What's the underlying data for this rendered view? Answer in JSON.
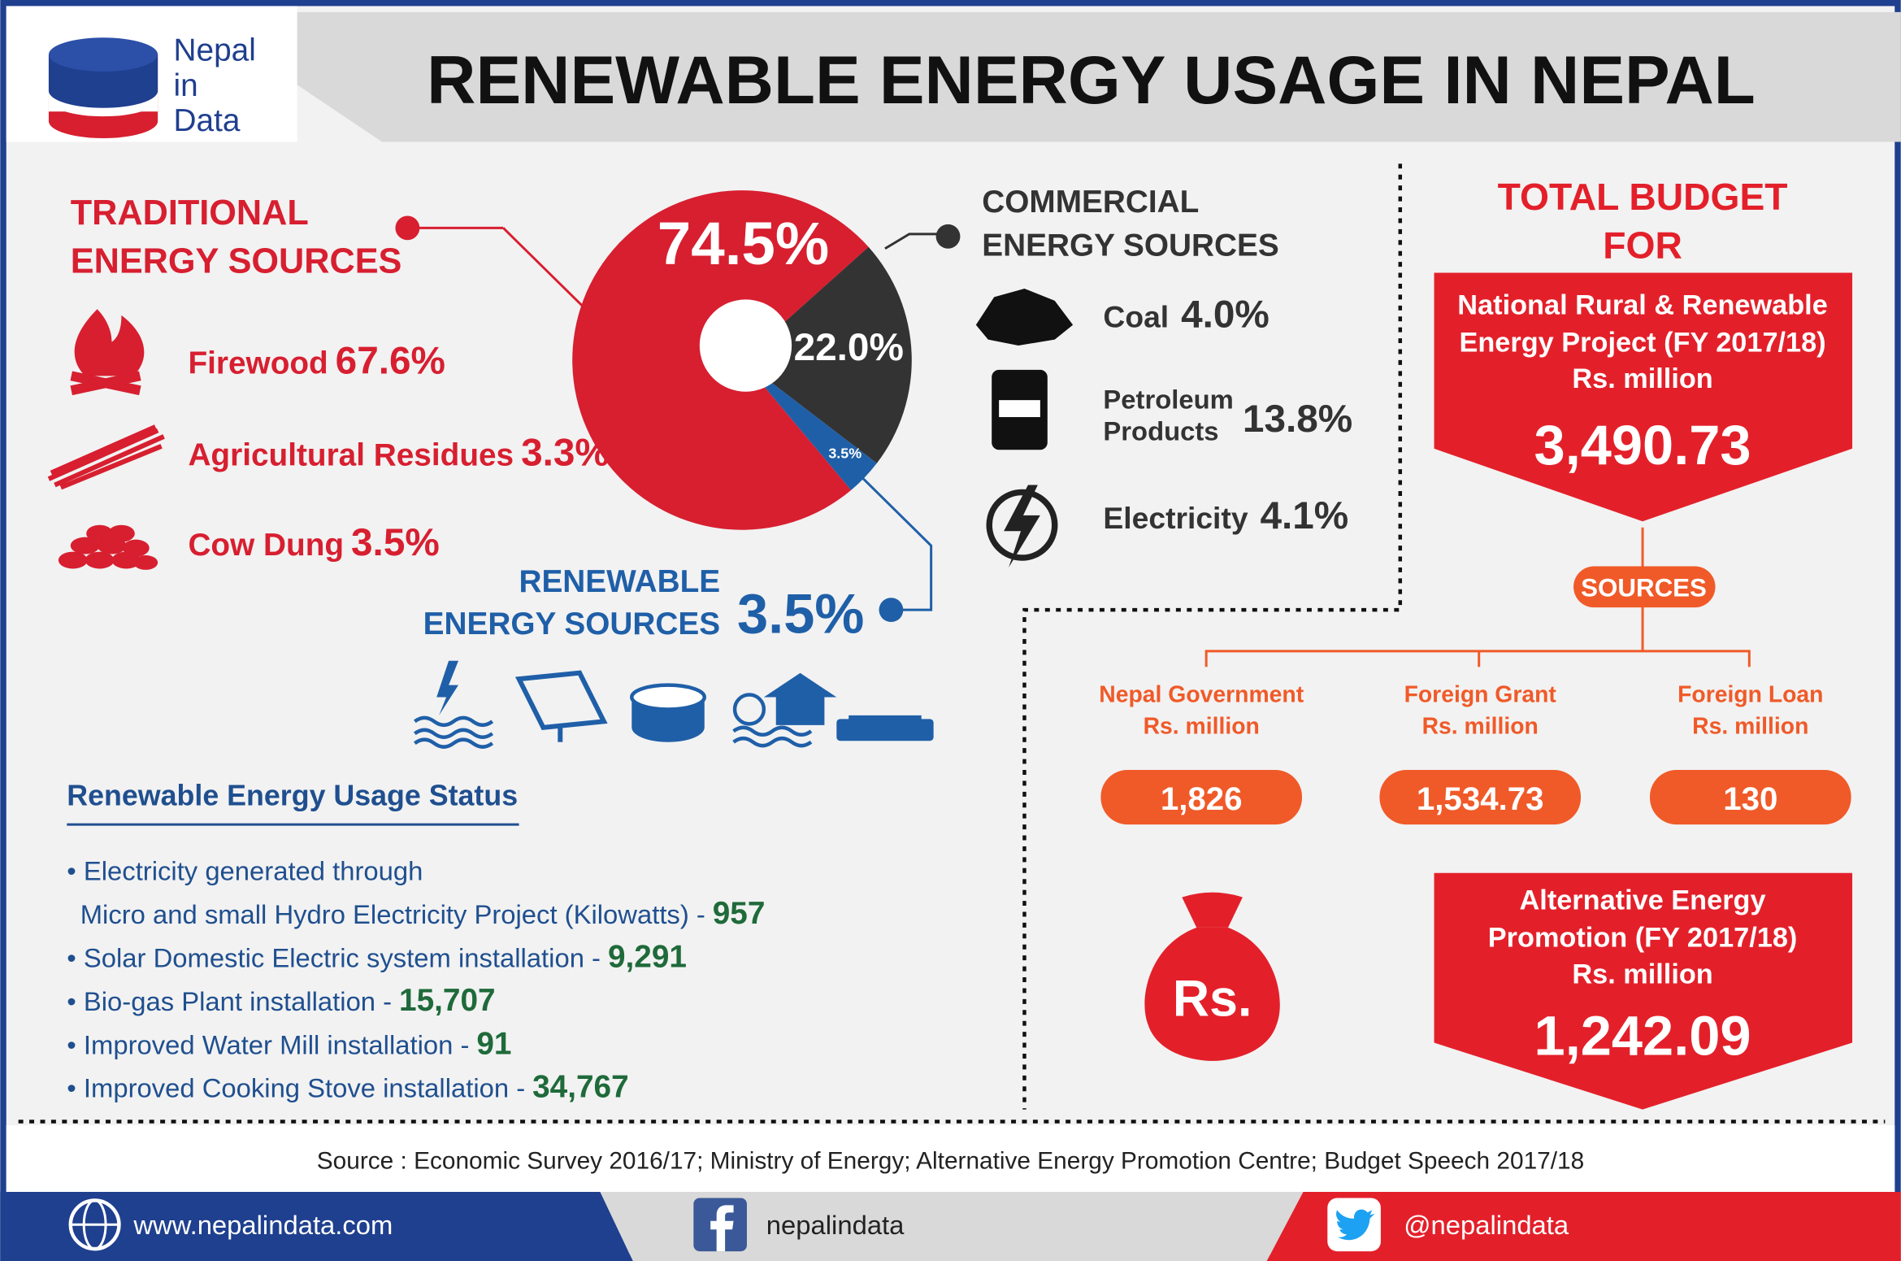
{
  "header": {
    "logo": [
      "Nepal",
      "in",
      "Data"
    ],
    "title": "RENEWABLE ENERGY USAGE IN NEPAL"
  },
  "chart_data": {
    "type": "pie",
    "donut": true,
    "values": [
      74.5,
      22.0,
      3.5
    ],
    "value_labels": [
      "74.5%",
      "22.0%",
      "3.5%"
    ],
    "colors": [
      "#d71f30",
      "#333333",
      "#1f5fa8"
    ]
  },
  "traditional": {
    "title": [
      "TRADITIONAL",
      "ENERGY SOURCES"
    ],
    "items": [
      {
        "label": "Firewood",
        "value": "67.6%"
      },
      {
        "label": "Agricultural Residues",
        "value": "3.3%"
      },
      {
        "label": "Cow Dung",
        "value": "3.5%"
      }
    ]
  },
  "commercial": {
    "title": [
      "COMMERCIAL",
      "ENERGY SOURCES"
    ],
    "items": [
      {
        "label": [
          "Coal"
        ],
        "value": "4.0%"
      },
      {
        "label": [
          "Petroleum",
          "Products"
        ],
        "value": "13.8%"
      },
      {
        "label": [
          "Electricity"
        ],
        "value": "4.1%"
      }
    ]
  },
  "renewable": {
    "title": [
      "RENEWABLE",
      "ENERGY SOURCES"
    ],
    "value": "3.5%"
  },
  "status": {
    "title": "Renewable Energy Usage Status",
    "items": [
      {
        "label": [
          "• Electricity generated through",
          "Micro and small Hydro Electricity Project (Kilowatts) -"
        ],
        "value": "957"
      },
      {
        "label": [
          "• Solar Domestic Electric system installation -"
        ],
        "value": "9,291"
      },
      {
        "label": [
          "• Bio-gas Plant installation -"
        ],
        "value": "15,707"
      },
      {
        "label": [
          "• Improved Water Mill installation -"
        ],
        "value": "91"
      },
      {
        "label": [
          "• Improved Cooking Stove installation -"
        ],
        "value": "34,767"
      }
    ]
  },
  "budget": {
    "title": [
      "TOTAL BUDGET",
      "FOR"
    ],
    "project": {
      "name": [
        "National Rural & Renewable",
        "Energy Project (FY 2017/18)",
        "Rs. million"
      ],
      "amount": "3,490.73"
    },
    "sources_label": "SOURCES",
    "sources": [
      {
        "name": [
          "Nepal Government",
          "Rs. million"
        ],
        "amount": "1,826"
      },
      {
        "name": [
          "Foreign Grant",
          "Rs. million"
        ],
        "amount": "1,534.73"
      },
      {
        "name": [
          "Foreign Loan",
          "Rs. million"
        ],
        "amount": "130"
      }
    ],
    "bag": "Rs.",
    "aepc": {
      "name": [
        "Alternative Energy",
        "Promotion (FY 2017/18)",
        "Rs. million"
      ],
      "amount": "1,242.09"
    }
  },
  "footer": {
    "source": "Source : Economic Survey 2016/17; Ministry of Energy; Alternative Energy Promotion Centre; Budget Speech 2017/18",
    "website": "www.nepalindata.com",
    "facebook": "nepalindata",
    "twitter": "@nepalindata"
  }
}
